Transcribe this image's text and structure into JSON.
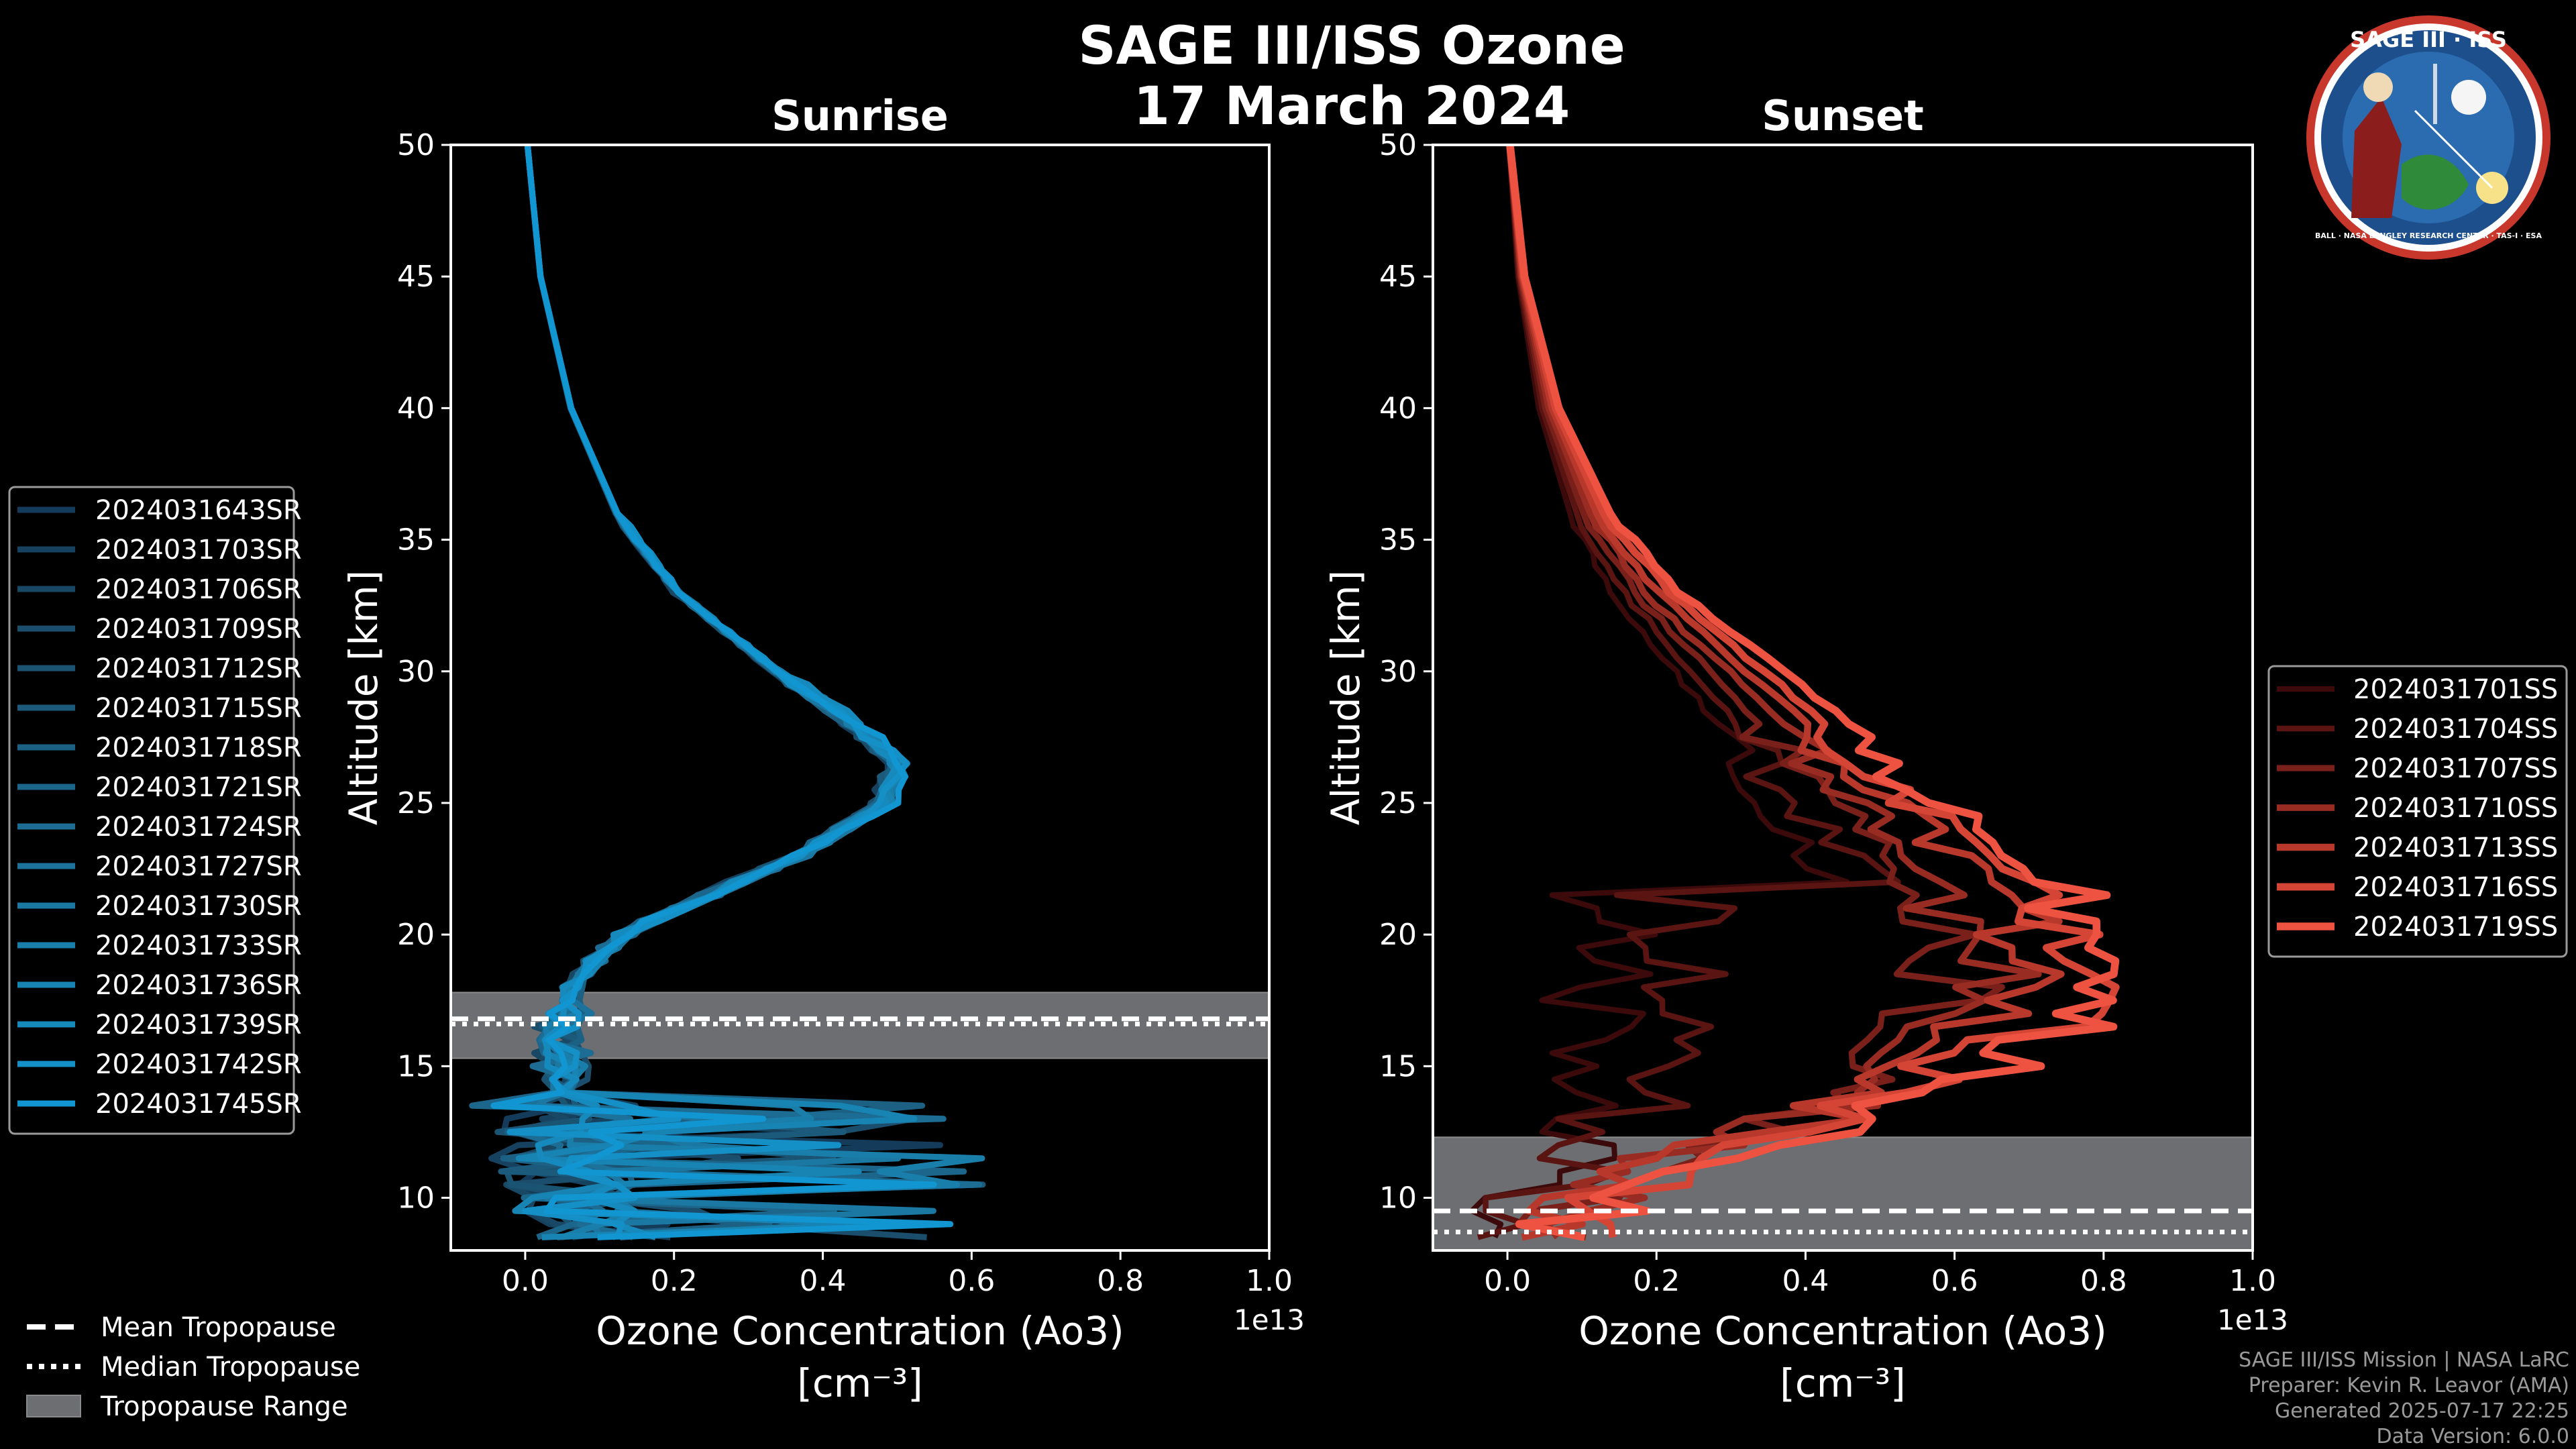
{
  "figure": {
    "title_line1": "SAGE III/ISS Ozone",
    "title_line2": "17 March 2024",
    "logo": {
      "name": "mission-patch",
      "text_top": "SAGE III · ISS",
      "text_ring": "BALL · NASA LANGLEY RESEARCH CENTER · TAS-I · ESA"
    },
    "credits": [
      "SAGE III/ISS Mission | NASA LaRC",
      "Preparer: Kevin R. Leavor (AMA)",
      "Generated 2025-07-17 22:25",
      "Data Version: 6.0.0"
    ],
    "bottom_legend": [
      {
        "label": "Mean Tropopause",
        "style": "dashed"
      },
      {
        "label": "Median Tropopause",
        "style": "dotted"
      },
      {
        "label": "Tropopause Range",
        "style": "patch"
      }
    ]
  },
  "chart_data": [
    {
      "type": "line",
      "title": "Sunrise",
      "xlabel": "Ozone Concentration (Ao3)",
      "xlabel_units": "[cm⁻³]",
      "x_multiplier": "1e13",
      "ylabel": "Altitude [km]",
      "xlim": [
        -0.1,
        1.0
      ],
      "ylim": [
        8,
        50
      ],
      "xticks": [
        0.0,
        0.2,
        0.4,
        0.6,
        0.8,
        1.0
      ],
      "xtick_labels": [
        "0.0",
        "0.2",
        "0.4",
        "0.6",
        "0.8",
        "1.0"
      ],
      "yticks": [
        10,
        15,
        20,
        25,
        30,
        35,
        40,
        45,
        50
      ],
      "ytick_labels": [
        "10",
        "15",
        "20",
        "25",
        "30",
        "35",
        "40",
        "45",
        "50"
      ],
      "tropopause": {
        "mean": 16.8,
        "median": 16.6,
        "range": [
          15.3,
          17.8
        ]
      },
      "legend_position": "left",
      "profile_shape": {
        "altitude_km": [
          50,
          45,
          40,
          36,
          33,
          30,
          28,
          26.5,
          25,
          23,
          21,
          20,
          19,
          18,
          17,
          16,
          15,
          14,
          13,
          12,
          11,
          10,
          9,
          8.3
        ],
        "ozone": [
          0.003,
          0.02,
          0.06,
          0.12,
          0.2,
          0.33,
          0.43,
          0.49,
          0.47,
          0.36,
          0.2,
          0.13,
          0.09,
          0.06,
          0.05,
          0.04,
          0.05,
          0.05,
          0.05,
          0.06,
          0.07,
          0.08,
          0.09,
          0.12
        ]
      },
      "series": [
        {
          "name": "2024031643SR",
          "color": "#143c5a"
        },
        {
          "name": "2024031703SR",
          "color": "#16425f"
        },
        {
          "name": "2024031706SR",
          "color": "#184864"
        },
        {
          "name": "2024031709SR",
          "color": "#1a4e6c"
        },
        {
          "name": "2024031712SR",
          "color": "#1b5473"
        },
        {
          "name": "2024031715SR",
          "color": "#1c5a7b"
        },
        {
          "name": "2024031718SR",
          "color": "#1c6083"
        },
        {
          "name": "2024031721SR",
          "color": "#1c668b"
        },
        {
          "name": "2024031724SR",
          "color": "#1c6c93"
        },
        {
          "name": "2024031727SR",
          "color": "#1c729b"
        },
        {
          "name": "2024031730SR",
          "color": "#1b78a3"
        },
        {
          "name": "2024031733SR",
          "color": "#1a7eab"
        },
        {
          "name": "2024031736SR",
          "color": "#1884b3"
        },
        {
          "name": "2024031739SR",
          "color": "#168abd"
        },
        {
          "name": "2024031742SR",
          "color": "#1490c7"
        },
        {
          "name": "2024031745SR",
          "color": "#1296d2"
        }
      ]
    },
    {
      "type": "line",
      "title": "Sunset",
      "xlabel": "Ozone Concentration (Ao3)",
      "xlabel_units": "[cm⁻³]",
      "x_multiplier": "1e13",
      "ylabel": "Altitude [km]",
      "xlim": [
        -0.1,
        1.0
      ],
      "ylim": [
        8,
        50
      ],
      "xticks": [
        0.0,
        0.2,
        0.4,
        0.6,
        0.8,
        1.0
      ],
      "xtick_labels": [
        "0.0",
        "0.2",
        "0.4",
        "0.6",
        "0.8",
        "1.0"
      ],
      "yticks": [
        10,
        15,
        20,
        25,
        30,
        35,
        40,
        45,
        50
      ],
      "ytick_labels": [
        "10",
        "15",
        "20",
        "25",
        "30",
        "35",
        "40",
        "45",
        "50"
      ],
      "tropopause": {
        "mean": 9.5,
        "median": 8.7,
        "range": [
          8.0,
          12.3
        ]
      },
      "legend_position": "right",
      "profile_shape": {
        "altitude_km": [
          50,
          45,
          40,
          36,
          33,
          30,
          28,
          26,
          24,
          22,
          20,
          19,
          18,
          17,
          16,
          15,
          14,
          13,
          12,
          11,
          10,
          9,
          8.3
        ],
        "ozone": [
          0.003,
          0.02,
          0.06,
          0.12,
          0.2,
          0.32,
          0.4,
          0.46,
          0.55,
          0.63,
          0.68,
          0.7,
          0.7,
          0.68,
          0.62,
          0.55,
          0.5,
          0.42,
          0.3,
          0.2,
          0.12,
          0.08,
          0.06
        ]
      },
      "series": [
        {
          "name": "2024031701SS",
          "color": "#3c0a0a"
        },
        {
          "name": "2024031704SS",
          "color": "#5a1512"
        },
        {
          "name": "2024031707SS",
          "color": "#7a201a"
        },
        {
          "name": "2024031710SS",
          "color": "#982b22"
        },
        {
          "name": "2024031713SS",
          "color": "#b8382c"
        },
        {
          "name": "2024031716SS",
          "color": "#d44536"
        },
        {
          "name": "2024031719SS",
          "color": "#ee5241"
        }
      ]
    }
  ]
}
